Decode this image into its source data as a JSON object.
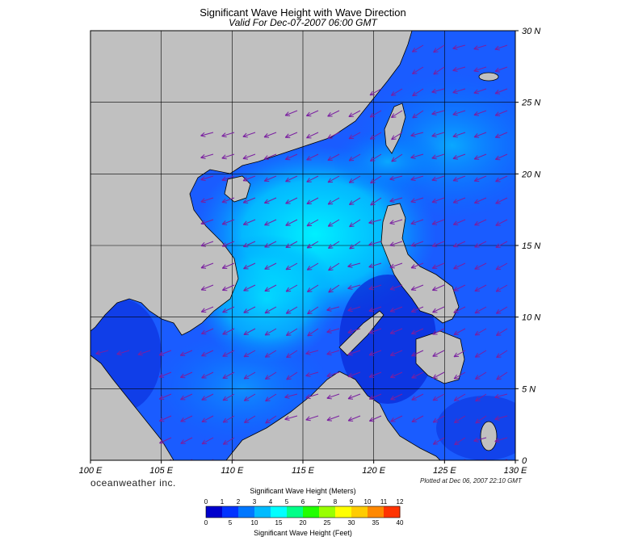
{
  "title": "Significant Wave Height with Wave Direction",
  "subtitle": "Valid For Dec-07-2007 06:00 GMT",
  "brand": "oceanweather inc.",
  "plotted": "Plotted at Dec 06, 2007 22:10 GMT",
  "map": {
    "lon_range": [
      100,
      130
    ],
    "lat_range": [
      0,
      30
    ],
    "lon_ticks": [
      "100 E",
      "105 E",
      "110 E",
      "115 E",
      "120 E",
      "125 E",
      "130 E"
    ],
    "lat_ticks": [
      "30 N",
      "25 N",
      "20 N",
      "15 N",
      "10 N",
      "5 N",
      "0"
    ],
    "land_color": "#c0c0c0",
    "arrow_color": "#7a1fa0"
  },
  "legend": {
    "meters_title": "Significant Wave Height (Meters)",
    "feet_title": "Significant Wave Height (Feet)",
    "meters_ticks": [
      "0",
      "1",
      "2",
      "3",
      "4",
      "5",
      "6",
      "7",
      "8",
      "9",
      "10",
      "11",
      "12"
    ],
    "feet_ticks": [
      "0",
      "5",
      "10",
      "15",
      "20",
      "25",
      "30",
      "35",
      "40"
    ],
    "colors": [
      "#0000cc",
      "#0033ff",
      "#0077ff",
      "#00bbff",
      "#00ffff",
      "#00ff88",
      "#22ff00",
      "#99ff00",
      "#ffff00",
      "#ffcc00",
      "#ff8800",
      "#ff3300"
    ]
  }
}
